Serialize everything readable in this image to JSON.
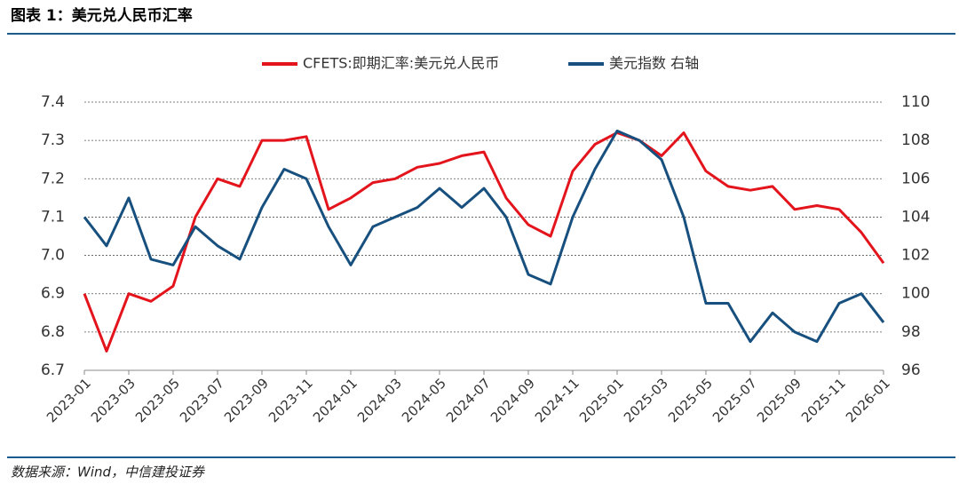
{
  "chart_data": {
    "type": "line",
    "title": "图表 1：美元兑人民币汇率",
    "source": "数据来源：Wind，中信建投证券",
    "x": [
      "2023-01",
      "2023-02",
      "2023-03",
      "2023-04",
      "2023-05",
      "2023-06",
      "2023-07",
      "2023-08",
      "2023-09",
      "2023-10",
      "2023-11",
      "2023-12",
      "2024-01",
      "2024-02",
      "2024-03",
      "2024-04",
      "2024-05",
      "2024-06",
      "2024-07",
      "2024-08",
      "2024-09",
      "2024-10",
      "2024-11",
      "2024-12",
      "2025-01",
      "2025-02",
      "2025-03",
      "2025-04",
      "2025-05",
      "2025-06",
      "2025-07",
      "2025-08",
      "2025-09",
      "2025-10",
      "2025-11",
      "2025-12",
      "2026-01"
    ],
    "xticks": [
      "2023-01",
      "2023-03",
      "2023-05",
      "2023-07",
      "2023-09",
      "2023-11",
      "2024-01",
      "2024-03",
      "2024-05",
      "2024-07",
      "2024-09",
      "2024-11",
      "2025-01",
      "2025-03",
      "2025-05",
      "2025-07",
      "2025-09",
      "2025-11",
      "2026-01"
    ],
    "series": [
      {
        "name": "CFETS:即期汇率:美元兑人民币",
        "color": "#e3141c",
        "values": [
          6.9,
          6.75,
          6.9,
          6.88,
          6.92,
          7.1,
          7.2,
          7.18,
          7.3,
          7.3,
          7.31,
          7.12,
          7.15,
          7.19,
          7.2,
          7.23,
          7.24,
          7.26,
          7.27,
          7.15,
          7.08,
          7.05,
          7.22,
          7.29,
          7.32,
          7.3,
          7.26,
          7.32,
          7.22,
          7.18,
          7.17,
          7.18,
          7.12,
          7.13,
          7.12,
          7.06,
          6.98
        ]
      },
      {
        "name": "美元指数 右轴",
        "color": "#17507e",
        "axis": "y2",
        "values": [
          104,
          102.5,
          105,
          101.8,
          101.5,
          103.5,
          102.5,
          101.8,
          104.5,
          106.5,
          106,
          103.5,
          101.5,
          103.5,
          104,
          104.5,
          105.5,
          104.5,
          105.5,
          104,
          101,
          100.5,
          104,
          106.5,
          108.5,
          108,
          107,
          104,
          99.5,
          99.5,
          97.5,
          99,
          98,
          97.5,
          99.5,
          100,
          98.5
        ]
      }
    ],
    "ylim": [
      6.7,
      7.4
    ],
    "yticks": [
      6.7,
      6.8,
      6.9,
      {
        "value": 7,
        "label": "7.0"
      },
      7.1,
      7.2,
      7.3,
      7.4
    ],
    "y2lim": [
      96,
      110
    ],
    "y2ticks": [
      96,
      98,
      100,
      102,
      104,
      106,
      108,
      110
    ],
    "grid": true,
    "legend": "top"
  }
}
